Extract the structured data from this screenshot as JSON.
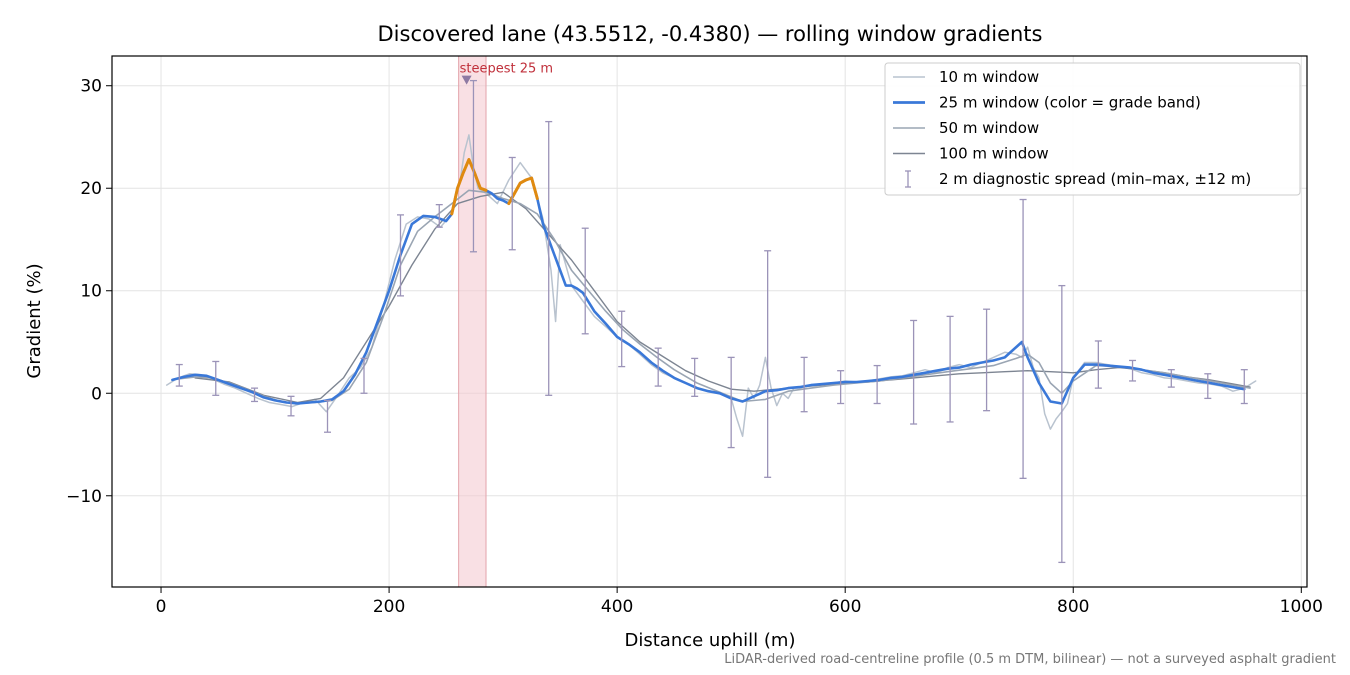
{
  "chart_data": {
    "type": "line",
    "title": "Discovered lane (43.5512, -0.4380) — rolling window gradients",
    "xlabel": "Distance uphill (m)",
    "ylabel": "Gradient (%)",
    "xlim": [
      -43,
      1005
    ],
    "ylim": [
      -18.9,
      32.9
    ],
    "x_ticks": [
      0,
      200,
      400,
      600,
      800,
      1000
    ],
    "y_ticks": [
      -10,
      0,
      10,
      20,
      30
    ],
    "y_tick_labels": [
      "−10",
      "0",
      "10",
      "20",
      "30"
    ],
    "grid": true,
    "legend_position": "top-right",
    "colors": {
      "w10": "#b9c3cf",
      "w25": "#3a78d8",
      "w25_steep": "#e08a10",
      "w50": "#9aa5b3",
      "w100": "#7d8592",
      "errorbar": "#9b93b8",
      "steepest_band": "#f4c7cd",
      "steepest_text": "#c0303b"
    },
    "steepest": {
      "label": "steepest 25 m",
      "x_start": 261,
      "x_end": 285,
      "peak_x": 268,
      "peak_y": 30.6
    },
    "legend": [
      {
        "key": "w10",
        "label": "10 m window"
      },
      {
        "key": "w25",
        "label": "25 m window (color = grade band)"
      },
      {
        "key": "w50",
        "label": "50 m window"
      },
      {
        "key": "w100",
        "label": "100 m window"
      },
      {
        "key": "errorbar",
        "label": "2 m diagnostic spread (min–max, ±12 m)"
      }
    ],
    "series": [
      {
        "name": "10 m window",
        "x": [
          5,
          15,
          25,
          35,
          45,
          55,
          65,
          75,
          85,
          95,
          105,
          115,
          125,
          135,
          145,
          155,
          165,
          175,
          185,
          195,
          205,
          215,
          225,
          235,
          245,
          255,
          262,
          266,
          270,
          274,
          278,
          285,
          295,
          305,
          315,
          325,
          335,
          342,
          346,
          350,
          360,
          370,
          380,
          390,
          400,
          410,
          420,
          430,
          440,
          450,
          460,
          470,
          480,
          490,
          500,
          505,
          510,
          515,
          520,
          525,
          530,
          535,
          540,
          545,
          550,
          555,
          560,
          570,
          580,
          590,
          600,
          610,
          620,
          630,
          640,
          650,
          660,
          670,
          680,
          690,
          700,
          710,
          720,
          730,
          740,
          750,
          755,
          760,
          765,
          770,
          775,
          780,
          785,
          790,
          795,
          800,
          810,
          820,
          830,
          840,
          850,
          860,
          870,
          880,
          890,
          900,
          910,
          920,
          930,
          940,
          950,
          960
        ],
        "y": [
          0.8,
          1.5,
          1.9,
          1.8,
          1.4,
          0.9,
          0.5,
          0.0,
          -0.5,
          -0.9,
          -1.1,
          -1.3,
          -0.9,
          -0.6,
          -1.8,
          -0.2,
          1.5,
          2.5,
          4.5,
          8.5,
          13.0,
          16.5,
          17.2,
          17.0,
          16.2,
          17.5,
          20.5,
          23.5,
          25.2,
          22.0,
          20.0,
          19.5,
          18.5,
          20.8,
          22.5,
          21.0,
          17.0,
          12.0,
          7.0,
          14.5,
          10.5,
          9.0,
          7.5,
          6.5,
          5.5,
          4.8,
          3.8,
          2.8,
          2.0,
          1.5,
          1.0,
          0.5,
          0.2,
          0.0,
          -0.5,
          -2.5,
          -4.2,
          0.5,
          -0.5,
          0.8,
          3.5,
          0.5,
          -1.2,
          0.0,
          -0.5,
          0.5,
          0.5,
          0.8,
          0.8,
          1.0,
          1.2,
          1.1,
          1.2,
          1.4,
          1.6,
          1.7,
          2.0,
          2.3,
          2.0,
          2.5,
          2.8,
          2.5,
          3.0,
          3.5,
          4.0,
          3.8,
          3.5,
          4.5,
          2.5,
          1.5,
          -2.0,
          -3.5,
          -2.5,
          -1.8,
          -1.0,
          1.5,
          3.0,
          3.0,
          2.8,
          2.6,
          2.4,
          2.0,
          1.8,
          1.5,
          1.4,
          1.2,
          1.0,
          0.9,
          0.7,
          0.2,
          0.5,
          1.2
        ]
      },
      {
        "name": "25 m window",
        "x": [
          10,
          20,
          30,
          40,
          50,
          60,
          70,
          80,
          90,
          100,
          110,
          120,
          130,
          140,
          150,
          160,
          170,
          180,
          190,
          200,
          210,
          220,
          230,
          240,
          250,
          255,
          260,
          265,
          270,
          275,
          280,
          285,
          290,
          295,
          300,
          305,
          310,
          315,
          320,
          325,
          330,
          335,
          340,
          345,
          350,
          355,
          360,
          365,
          370,
          380,
          390,
          400,
          410,
          420,
          430,
          440,
          450,
          460,
          470,
          480,
          490,
          500,
          510,
          520,
          530,
          540,
          550,
          560,
          570,
          580,
          590,
          600,
          610,
          620,
          630,
          640,
          650,
          660,
          670,
          680,
          690,
          700,
          710,
          720,
          730,
          740,
          750,
          755,
          760,
          770,
          780,
          790,
          800,
          810,
          820,
          830,
          840,
          850,
          860,
          870,
          880,
          890,
          900,
          910,
          920,
          930,
          940,
          950
        ],
        "y": [
          1.3,
          1.6,
          1.8,
          1.7,
          1.3,
          0.9,
          0.5,
          0.1,
          -0.4,
          -0.7,
          -0.9,
          -1.0,
          -0.9,
          -0.8,
          -0.6,
          0.2,
          1.8,
          4.0,
          7.0,
          10.0,
          13.5,
          16.5,
          17.3,
          17.2,
          16.8,
          17.5,
          20.0,
          21.5,
          22.8,
          21.5,
          20.0,
          19.8,
          19.5,
          19.0,
          18.8,
          18.5,
          19.5,
          20.5,
          20.8,
          21.0,
          19.0,
          16.5,
          15.0,
          13.5,
          12.0,
          10.5,
          10.5,
          10.2,
          9.8,
          8.0,
          6.8,
          5.5,
          4.8,
          4.0,
          3.0,
          2.2,
          1.5,
          1.0,
          0.5,
          0.2,
          0.0,
          -0.5,
          -0.8,
          -0.3,
          0.2,
          0.3,
          0.5,
          0.6,
          0.8,
          0.9,
          1.0,
          1.1,
          1.1,
          1.2,
          1.3,
          1.5,
          1.6,
          1.8,
          2.0,
          2.2,
          2.4,
          2.5,
          2.8,
          3.0,
          3.2,
          3.5,
          4.5,
          5.0,
          3.5,
          1.0,
          -0.8,
          -1.0,
          1.5,
          2.8,
          2.8,
          2.7,
          2.6,
          2.5,
          2.3,
          2.0,
          1.8,
          1.6,
          1.4,
          1.2,
          1.0,
          0.8,
          0.6,
          0.4
        ],
        "steep_x_range": [
          [
            255,
            285
          ],
          [
            305,
            330
          ]
        ]
      },
      {
        "name": "50 m window",
        "x": [
          15,
          30,
          45,
          60,
          75,
          90,
          105,
          120,
          135,
          150,
          165,
          180,
          195,
          210,
          225,
          240,
          255,
          270,
          285,
          300,
          315,
          330,
          345,
          360,
          375,
          390,
          405,
          420,
          435,
          450,
          470,
          490,
          510,
          530,
          550,
          570,
          590,
          610,
          630,
          650,
          670,
          690,
          710,
          730,
          750,
          760,
          770,
          780,
          790,
          800,
          820,
          840,
          860,
          880,
          900,
          920,
          940,
          955
        ],
        "y": [
          1.4,
          1.6,
          1.5,
          1.0,
          0.4,
          -0.3,
          -0.8,
          -1.0,
          -0.9,
          -0.7,
          0.4,
          3.0,
          7.5,
          12.5,
          15.8,
          17.2,
          18.5,
          19.8,
          19.6,
          19.0,
          18.5,
          17.5,
          15.0,
          12.0,
          10.0,
          8.0,
          6.2,
          4.8,
          3.5,
          2.3,
          1.0,
          0.1,
          -0.8,
          -0.6,
          0.2,
          0.5,
          0.8,
          1.0,
          1.2,
          1.5,
          1.8,
          2.1,
          2.4,
          2.7,
          3.4,
          3.8,
          3.0,
          1.0,
          0.0,
          1.2,
          2.7,
          2.6,
          2.3,
          2.0,
          1.6,
          1.2,
          0.8,
          0.5
        ]
      },
      {
        "name": "100 m window",
        "x": [
          30,
          60,
          90,
          120,
          140,
          160,
          180,
          200,
          220,
          240,
          260,
          280,
          300,
          320,
          340,
          360,
          380,
          400,
          420,
          440,
          460,
          480,
          500,
          520,
          540,
          560,
          580,
          600,
          620,
          640,
          660,
          680,
          700,
          720,
          740,
          760,
          780,
          800,
          820,
          840,
          860,
          880,
          900,
          920,
          940,
          955
        ],
        "y": [
          1.5,
          1.1,
          -0.2,
          -0.9,
          -0.5,
          1.5,
          5.0,
          8.5,
          12.5,
          16.0,
          18.5,
          19.2,
          19.6,
          18.0,
          15.5,
          13.0,
          10.0,
          7.0,
          5.0,
          3.6,
          2.2,
          1.2,
          0.4,
          0.2,
          0.4,
          0.6,
          0.8,
          1.0,
          1.1,
          1.3,
          1.5,
          1.7,
          1.9,
          2.0,
          2.1,
          2.2,
          2.1,
          2.0,
          2.3,
          2.5,
          2.3,
          2.0,
          1.6,
          1.3,
          0.9,
          0.6
        ]
      }
    ],
    "error_bars": {
      "x": [
        16,
        48,
        82,
        114,
        146,
        178,
        210,
        244,
        274,
        308,
        340,
        372,
        404,
        436,
        468,
        500,
        532,
        564,
        596,
        628,
        660,
        692,
        724,
        756,
        790,
        822,
        852,
        886,
        918,
        950
      ],
      "y": [
        1.6,
        1.4,
        -0.2,
        -1.0,
        -0.9,
        2.0,
        13.5,
        17.0,
        22.0,
        18.5,
        13.0,
        11.0,
        5.3,
        2.6,
        1.8,
        -1.0,
        3.0,
        0.8,
        0.8,
        0.8,
        2.2,
        2.5,
        3.3,
        5.3,
        -3.0,
        3.0,
        2.5,
        1.5,
        0.5,
        0.6
      ],
      "min": [
        0.7,
        -0.2,
        -0.8,
        -2.2,
        -3.8,
        0.0,
        9.5,
        16.2,
        13.8,
        14.0,
        -0.2,
        5.8,
        2.6,
        0.7,
        -0.3,
        -5.3,
        -8.2,
        -1.8,
        -1.0,
        -1.0,
        -3.0,
        -2.8,
        -1.7,
        -8.3,
        -16.5,
        0.5,
        1.2,
        0.6,
        -0.5,
        -1.0
      ],
      "max": [
        2.8,
        3.1,
        0.5,
        -0.3,
        -0.7,
        3.4,
        17.4,
        18.4,
        30.5,
        23.0,
        26.5,
        16.1,
        8.0,
        4.4,
        3.4,
        3.5,
        13.9,
        3.5,
        2.2,
        2.7,
        7.1,
        7.5,
        8.2,
        18.9,
        10.5,
        5.1,
        3.2,
        2.3,
        1.9,
        2.3
      ]
    }
  },
  "footnote": "LiDAR-derived road-centreline profile (0.5 m DTM, bilinear) — not a surveyed asphalt gradient"
}
